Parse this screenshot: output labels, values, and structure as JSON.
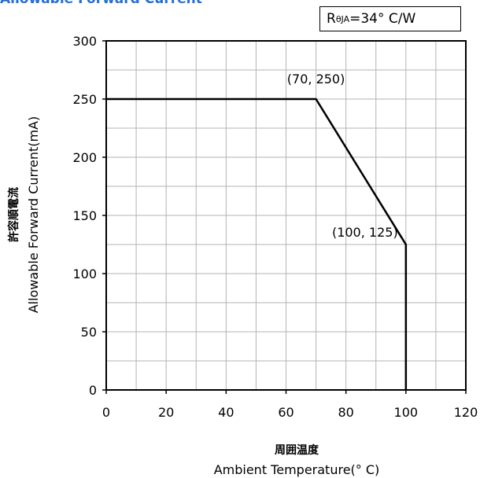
{
  "chart_data": {
    "type": "line",
    "title": "Allowable Forward Current",
    "legend": {
      "prefix": "R",
      "subscript": "θJA",
      "suffix": " =34° C/W",
      "placement": "top-right"
    },
    "xlabel_jp": "周囲温度",
    "xlabel": "Ambient Temperature(° C)",
    "ylabel_jp": "許容順電流",
    "ylabel": "Allowable Forward Current(mA)",
    "xlim": [
      0,
      120
    ],
    "ylim": [
      0,
      300
    ],
    "x_ticks": [
      0,
      20,
      40,
      60,
      80,
      100,
      120
    ],
    "y_ticks": [
      0,
      50,
      100,
      150,
      200,
      250,
      300
    ],
    "x_minor_step": 10,
    "y_minor_step": 25,
    "grid": true,
    "series": [
      {
        "x": [
          0,
          70,
          100,
          100
        ],
        "y": [
          250,
          250,
          125,
          0
        ]
      }
    ],
    "annotations": [
      {
        "text": "(70, 250)",
        "x": 70,
        "y": 250
      },
      {
        "text": "(100, 125)",
        "x": 100,
        "y": 125
      }
    ]
  }
}
